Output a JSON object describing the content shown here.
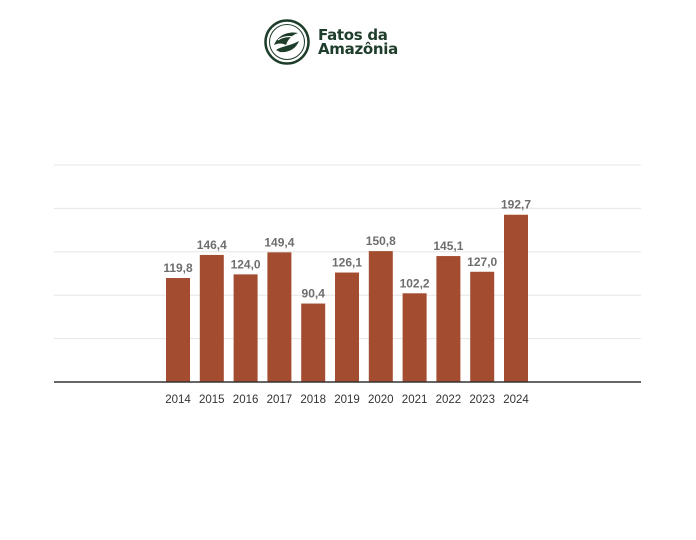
{
  "brand": {
    "line1": "Fatos da",
    "line2": "Amazônia",
    "color": "#1f3d2b"
  },
  "chart_data": {
    "type": "bar",
    "categories": [
      "2014",
      "2015",
      "2016",
      "2017",
      "2018",
      "2019",
      "2020",
      "2021",
      "2022",
      "2023",
      "2024"
    ],
    "values": [
      119.8,
      146.4,
      124.0,
      149.4,
      90.4,
      126.1,
      150.8,
      102.2,
      145.1,
      127.0,
      192.7
    ],
    "value_labels": [
      "119,8",
      "146,4",
      "124,0",
      "149,4",
      "90,4",
      "126,1",
      "150,8",
      "102,2",
      "145,1",
      "127,0",
      "192,7"
    ],
    "title": "",
    "xlabel": "",
    "ylabel": "",
    "ylim": [
      0,
      250
    ],
    "grid": true,
    "colors": {
      "bar": "#a44c30",
      "value_label": "#6e6e6e",
      "tick_label": "#333333",
      "grid": "#e6e6e6",
      "axis": "#333333"
    }
  }
}
